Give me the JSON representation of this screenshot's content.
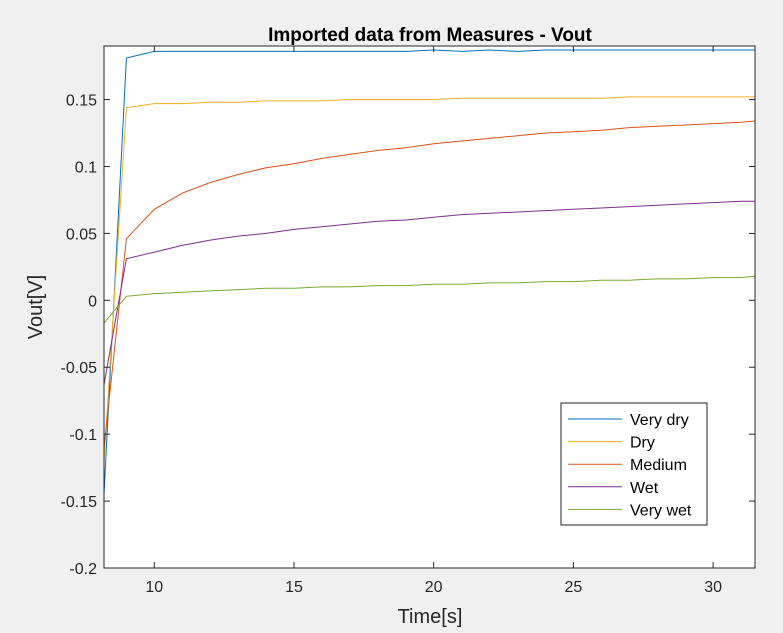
{
  "figure": {
    "background": "#f0f0f0",
    "axes_background": "#ffffff"
  },
  "chart_data": {
    "type": "line",
    "title": "Imported data from Measures - Vout",
    "xlabel": "Time[s]",
    "ylabel": "Vout[V]",
    "xlim": [
      8.2,
      31.5
    ],
    "ylim": [
      -0.2,
      0.19
    ],
    "xticks": [
      10,
      15,
      20,
      25,
      30
    ],
    "yticks": [
      -0.2,
      -0.15,
      -0.1,
      -0.05,
      0,
      0.05,
      0.1,
      0.15
    ],
    "ytick_labels": [
      "-0.2",
      "-0.15",
      "-0.1",
      "-0.05",
      "0",
      "0.05",
      "0.1",
      "0.15"
    ],
    "xtick_labels": [
      "10",
      "15",
      "20",
      "25",
      "30"
    ],
    "grid": false,
    "legend_position": "bottom-right",
    "x": [
      8.2,
      9,
      10,
      11,
      12,
      13,
      14,
      15,
      16,
      17,
      18,
      19,
      20,
      21,
      22,
      23,
      24,
      25,
      26,
      27,
      28,
      29,
      30,
      31,
      31.5
    ],
    "series": [
      {
        "name": "Very dry",
        "color": "#0072bd",
        "values": [
          -0.145,
          0.181,
          0.186,
          0.186,
          0.186,
          0.186,
          0.186,
          0.186,
          0.186,
          0.186,
          0.186,
          0.186,
          0.187,
          0.186,
          0.187,
          0.186,
          0.187,
          0.187,
          0.187,
          0.187,
          0.187,
          0.187,
          0.187,
          0.187,
          0.187
        ]
      },
      {
        "name": "Dry",
        "color": "#edb120",
        "values": [
          -0.12,
          0.144,
          0.147,
          0.147,
          0.148,
          0.148,
          0.149,
          0.149,
          0.149,
          0.15,
          0.15,
          0.15,
          0.15,
          0.151,
          0.151,
          0.151,
          0.151,
          0.151,
          0.151,
          0.152,
          0.152,
          0.152,
          0.152,
          0.152,
          0.152
        ]
      },
      {
        "name": "Medium",
        "color": "#d95319",
        "values": [
          -0.11,
          0.046,
          0.068,
          0.08,
          0.088,
          0.094,
          0.099,
          0.102,
          0.106,
          0.109,
          0.112,
          0.114,
          0.117,
          0.119,
          0.121,
          0.123,
          0.125,
          0.126,
          0.127,
          0.129,
          0.13,
          0.131,
          0.132,
          0.133,
          0.134
        ]
      },
      {
        "name": "Wet",
        "color": "#7e2f8e",
        "values": [
          -0.063,
          0.031,
          0.036,
          0.041,
          0.045,
          0.048,
          0.05,
          0.053,
          0.055,
          0.057,
          0.059,
          0.06,
          0.062,
          0.064,
          0.065,
          0.066,
          0.067,
          0.068,
          0.069,
          0.07,
          0.071,
          0.072,
          0.073,
          0.074,
          0.074
        ]
      },
      {
        "name": "Very wet",
        "color": "#77ac30",
        "values": [
          -0.017,
          0.003,
          0.005,
          0.006,
          0.007,
          0.008,
          0.009,
          0.009,
          0.01,
          0.01,
          0.011,
          0.011,
          0.012,
          0.012,
          0.013,
          0.013,
          0.014,
          0.014,
          0.015,
          0.015,
          0.016,
          0.016,
          0.017,
          0.017,
          0.018
        ]
      }
    ]
  }
}
